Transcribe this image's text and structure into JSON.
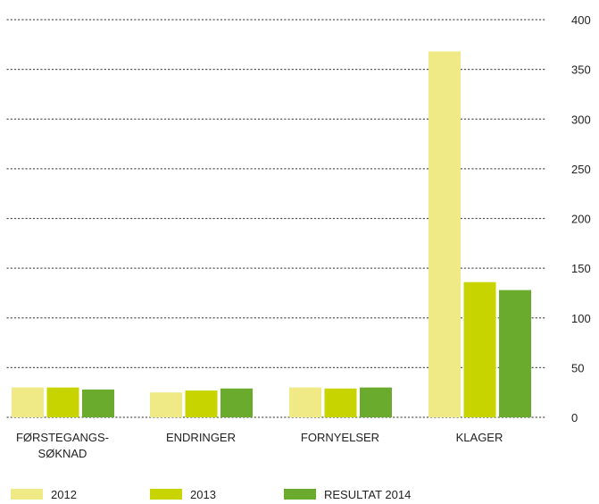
{
  "colors": {
    "s2012": "#f0ea86",
    "s2013": "#c8d400",
    "s2014": "#6aab2e",
    "grid": "#555555",
    "text": "#222222"
  },
  "chart_data": {
    "type": "bar",
    "categories": [
      [
        "FØRSTEGANGS-",
        "SØKNAD"
      ],
      [
        "ENDRINGER"
      ],
      [
        "FORNYELSER"
      ],
      [
        "KLAGER"
      ]
    ],
    "series": [
      {
        "name": "2012",
        "values": [
          30,
          25,
          30,
          368
        ]
      },
      {
        "name": "2013",
        "values": [
          30,
          27,
          29,
          136
        ]
      },
      {
        "name": "RESULTAT 2014",
        "values": [
          28,
          29,
          30,
          128
        ]
      }
    ],
    "ylim": [
      0,
      400
    ],
    "yticks": [
      "0",
      "50",
      "100",
      "150",
      "200",
      "250",
      "300",
      "350",
      "400"
    ],
    "ytick_values": [
      0,
      50,
      100,
      150,
      200,
      250,
      300,
      350,
      400
    ],
    "y_axis_side": "right",
    "grid": true,
    "grid_style": "dotted",
    "legend_position": "bottom-left",
    "title": "",
    "xlabel": "",
    "ylabel": ""
  }
}
